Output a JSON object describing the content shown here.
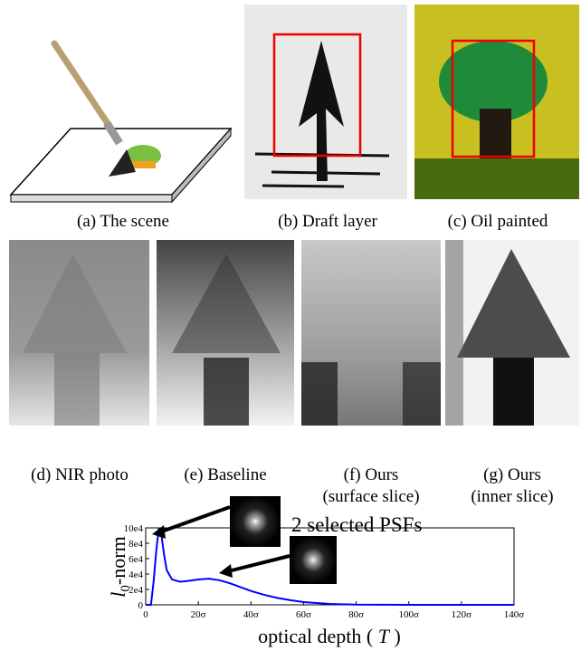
{
  "figure": {
    "captions": [
      [
        "(a) The scene"
      ],
      [
        "(b) Draft layer"
      ],
      [
        "(c) Oil painted"
      ],
      [
        "(d) NIR photo"
      ],
      [
        "(e) Baseline"
      ],
      [
        "(f) Ours",
        "(surface slice)"
      ],
      [
        "(g) Ours",
        "(inner slice)"
      ]
    ]
  },
  "chart_data": {
    "type": "line",
    "y_label_parts": [
      "l",
      "0",
      "-norm"
    ],
    "x_label_parts": [
      "optical depth ( ",
      "T",
      " )"
    ],
    "annotation": "2 selected PSFs",
    "x": [
      0,
      2,
      3,
      4,
      5,
      6,
      7,
      8,
      10,
      13,
      16,
      20,
      24,
      28,
      32,
      36,
      40,
      45,
      50,
      55,
      60,
      70,
      80,
      100,
      120,
      140
    ],
    "series": [
      {
        "color": "#0000ff",
        "values": [
          0,
          0,
          30000,
          70000,
          100000,
          90000,
          65000,
          45000,
          33000,
          30000,
          31000,
          33000,
          34000,
          32000,
          28000,
          23000,
          18000,
          13000,
          9000,
          6000,
          3500,
          1200,
          300,
          0,
          0,
          0
        ]
      }
    ],
    "xlim": [
      0,
      140
    ],
    "ylim": [
      0,
      100000
    ],
    "xticks": [
      0,
      {
        "value": 20,
        "label": "20σ"
      },
      {
        "value": 40,
        "label": "40σ"
      },
      {
        "value": 60,
        "label": "60σ"
      },
      {
        "value": 80,
        "label": "80σ"
      },
      {
        "value": 100,
        "label": "100σ"
      },
      {
        "value": 120,
        "label": "120σ"
      },
      {
        "value": 140,
        "label": "140σ"
      }
    ],
    "yticks": [
      0,
      {
        "value": 20000,
        "label": "2e4"
      },
      {
        "value": 40000,
        "label": "4e4"
      },
      {
        "value": 60000,
        "label": "6e4"
      },
      {
        "value": 80000,
        "label": "8e4"
      },
      {
        "value": 100000,
        "label": "10e4"
      }
    ]
  }
}
